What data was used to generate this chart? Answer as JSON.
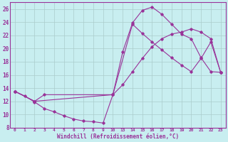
{
  "xlabel": "Windchill (Refroidissement éolien,°C)",
  "bg_color": "#c8eef0",
  "line_color": "#993399",
  "grid_color": "#aacccc",
  "xlim": [
    -0.5,
    23.5
  ],
  "ylim": [
    8,
    27
  ],
  "yticks": [
    8,
    10,
    12,
    14,
    16,
    18,
    20,
    22,
    24,
    26
  ],
  "xticks": [
    0,
    1,
    2,
    3,
    4,
    5,
    6,
    7,
    8,
    9,
    10,
    13,
    14,
    15,
    16,
    17,
    18,
    19,
    20,
    21,
    22,
    23
  ],
  "curve1_x": [
    0,
    1,
    2,
    3,
    4,
    5,
    6,
    7,
    8,
    9,
    10,
    13,
    14,
    15,
    16,
    17,
    18,
    19,
    20,
    21,
    22,
    23
  ],
  "curve1_y": [
    13.5,
    12.8,
    11.9,
    10.9,
    10.4,
    9.8,
    9.3,
    9.0,
    8.9,
    8.7,
    13.0,
    19.5,
    23.9,
    25.8,
    26.3,
    25.2,
    23.7,
    22.2,
    21.5,
    18.6,
    16.5,
    16.4
  ],
  "curve2_x": [
    0,
    2,
    3,
    10,
    14,
    15,
    16,
    17,
    18,
    19,
    20,
    21,
    22,
    23
  ],
  "curve2_y": [
    13.5,
    12.0,
    13.0,
    13.0,
    23.7,
    22.3,
    21.0,
    19.8,
    18.6,
    17.5,
    16.5,
    18.5,
    21.0,
    16.4
  ],
  "curve3_x": [
    0,
    2,
    10,
    13,
    14,
    15,
    16,
    17,
    18,
    19,
    20,
    21,
    22,
    23
  ],
  "curve3_y": [
    13.5,
    12.0,
    13.0,
    14.5,
    16.5,
    18.5,
    20.3,
    21.5,
    22.2,
    22.5,
    23.0,
    22.5,
    21.5,
    16.4
  ]
}
